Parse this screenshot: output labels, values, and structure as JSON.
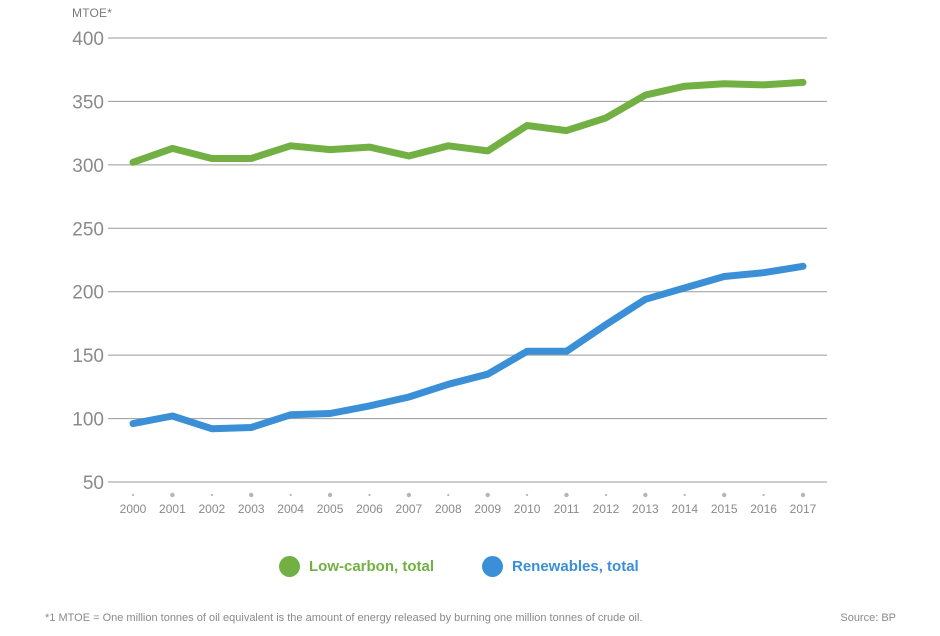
{
  "chart_data": {
    "type": "line",
    "title": "",
    "xlabel": "",
    "ylabel": "MTOE*",
    "ylim": [
      50,
      400
    ],
    "yticks": [
      50,
      100,
      150,
      200,
      250,
      300,
      350,
      400
    ],
    "grid": true,
    "legend_position": "bottom-center",
    "x": [
      "2000",
      "2001",
      "2002",
      "2003",
      "2004",
      "2005",
      "2006",
      "2007",
      "2008",
      "2009",
      "2010",
      "2011",
      "2012",
      "2013",
      "2014",
      "2015",
      "2016",
      "2017"
    ],
    "series": [
      {
        "name": "Low-carbon, total",
        "color": "#72b043",
        "values": [
          302,
          313,
          305,
          305,
          315,
          312,
          314,
          307,
          315,
          311,
          331,
          327,
          337,
          355,
          362,
          364,
          363,
          365
        ]
      },
      {
        "name": "Renewables, total",
        "color": "#3a8fd6",
        "values": [
          96,
          102,
          92,
          93,
          103,
          104,
          110,
          117,
          127,
          135,
          153,
          153,
          174,
          194,
          203,
          212,
          215,
          220
        ]
      }
    ],
    "footnote": "*1 MTOE = One million tonnes of oil equivalent is the amount of energy released by burning one million tonnes of crude oil.",
    "source": "Source: BP"
  }
}
